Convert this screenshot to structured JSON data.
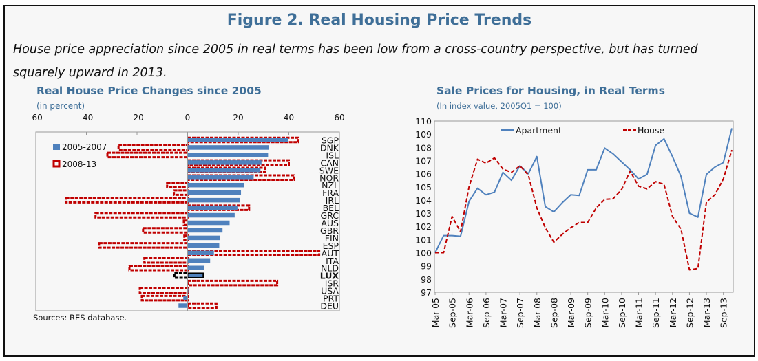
{
  "figure": {
    "title": "Figure 2. Real Housing Price Trends",
    "subtitle": "House price appreciation since 2005 in real terms has been low from a cross-country perspective, but has turned squarely upward in 2013.",
    "source": "Sources: RES database."
  },
  "colors": {
    "title": "#3f6f98",
    "blue": "#4f81bd",
    "red": "#c00000",
    "highlight": "#000000"
  },
  "chart_data": [
    {
      "type": "bar",
      "orientation": "horizontal",
      "title": "Real House Price Changes since 2005",
      "subtitle": "(in percent)",
      "xlim": [
        -60,
        60
      ],
      "xticks": [
        -60,
        -40,
        -20,
        0,
        20,
        40,
        60
      ],
      "legend_placement": "top-left",
      "highlight": "LUX",
      "categories": [
        "SGP",
        "DNK",
        "ISL",
        "CAN",
        "SWE",
        "NOR",
        "NZL",
        "FRA",
        "IRL",
        "BEL",
        "GRC",
        "AUS",
        "GBR",
        "FIN",
        "ESP",
        "AUT",
        "ITA",
        "NLD",
        "LUX",
        "ISR",
        "USA",
        "PRT",
        "DEU"
      ],
      "series": [
        {
          "name": "2005-2007",
          "style": "solid",
          "values": [
            39.8,
            32,
            31.8,
            29.2,
            28.8,
            26.1,
            22.4,
            21.1,
            20.6,
            19.7,
            18.6,
            16.6,
            13.8,
            12.9,
            12.5,
            10.4,
            8.9,
            6.6,
            6.2,
            -0.2,
            0.3,
            -1.7,
            -3.6
          ]
        },
        {
          "name": "2008-13",
          "style": "dashed",
          "values": [
            43.7,
            -27.3,
            -31.7,
            40,
            30.6,
            42,
            -8.1,
            -5.4,
            -48.1,
            24.3,
            -36.4,
            -1.5,
            -17.6,
            -1.3,
            -35,
            52,
            -17.1,
            -23,
            -5.2,
            35.4,
            -18.9,
            -18.1,
            11.4
          ]
        }
      ]
    },
    {
      "type": "line",
      "title": "Sale Prices for Housing, in Real Terms",
      "subtitle": "(In index value, 2005Q1 = 100)",
      "ylim": [
        97,
        110
      ],
      "yticks": [
        97,
        98,
        99,
        100,
        101,
        102,
        103,
        104,
        105,
        106,
        107,
        108,
        109,
        110
      ],
      "xtick_labels": [
        "Mar-05",
        "Sep-05",
        "Mar-06",
        "Sep-06",
        "Mar-07",
        "Sep-07",
        "Mar-08",
        "Sep-08",
        "Mar-09",
        "Sep-09",
        "Mar-10",
        "Sep-10",
        "Mar-11",
        "Sep-11",
        "Mar-12",
        "Sep-12",
        "Mar-13",
        "Sep-13"
      ],
      "x": [
        "Mar-05",
        "Jun-05",
        "Sep-05",
        "Dec-05",
        "Mar-06",
        "Jun-06",
        "Sep-06",
        "Dec-06",
        "Mar-07",
        "Jun-07",
        "Sep-07",
        "Dec-07",
        "Mar-08",
        "Jun-08",
        "Sep-08",
        "Dec-08",
        "Mar-09",
        "Jun-09",
        "Sep-09",
        "Dec-09",
        "Mar-10",
        "Jun-10",
        "Sep-10",
        "Dec-10",
        "Mar-11",
        "Jun-11",
        "Sep-11",
        "Dec-11",
        "Mar-12",
        "Jun-12",
        "Sep-12",
        "Dec-12",
        "Mar-13",
        "Jun-13",
        "Sep-13",
        "Dec-13"
      ],
      "legend_placement": "top",
      "series": [
        {
          "name": "Apartment",
          "style": "solid",
          "values": [
            100,
            101.3,
            101.3,
            101.25,
            103.9,
            104.9,
            104.4,
            104.6,
            106.1,
            105.5,
            106.6,
            106.0,
            107.3,
            103.5,
            103.1,
            103.8,
            104.4,
            104.35,
            106.3,
            106.3,
            107.95,
            107.5,
            106.9,
            106.3,
            105.6,
            105.95,
            108.15,
            108.65,
            107.3,
            105.8,
            103.0,
            102.7,
            105.95,
            106.5,
            106.85,
            109.45
          ]
        },
        {
          "name": "House",
          "style": "dashed",
          "values": [
            100,
            100,
            102.75,
            101.6,
            105.0,
            107.1,
            106.8,
            107.2,
            106.35,
            106.1,
            106.6,
            105.9,
            103.4,
            101.9,
            100.8,
            101.4,
            101.9,
            102.3,
            102.3,
            103.4,
            104.05,
            104.1,
            104.8,
            106.2,
            105.05,
            104.85,
            105.4,
            105.2,
            102.75,
            101.8,
            98.7,
            98.8,
            103.85,
            104.4,
            105.6,
            107.8
          ]
        }
      ]
    }
  ]
}
